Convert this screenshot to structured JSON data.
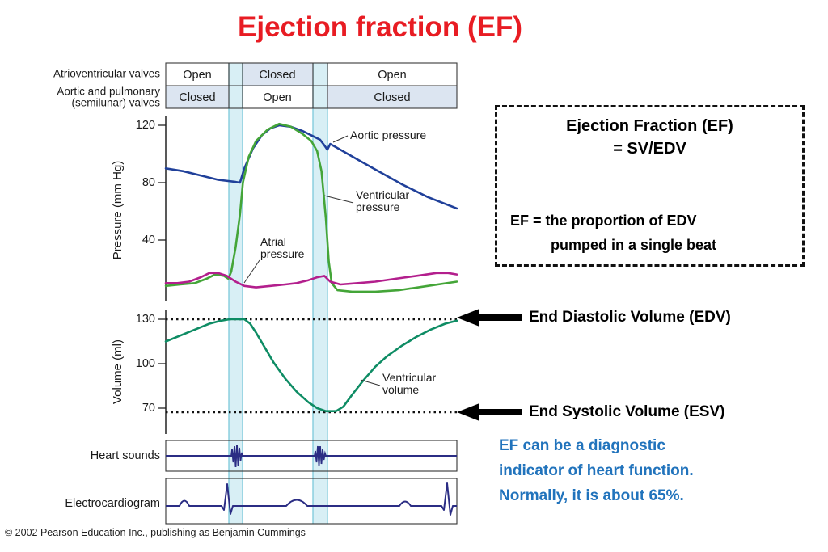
{
  "title": "Ejection fraction (EF)",
  "colors": {
    "title_red": "#e81c23",
    "aortic_blue": "#20409a",
    "ventricular_green": "#44a538",
    "atrial_magenta": "#b31f8d",
    "volume_teal": "#0e8c64",
    "trace_navy": "#2b2d84",
    "cyan_band_fill": "#d8eff5",
    "cyan_band_line": "#7cc9da",
    "closed_cell_shade": "#dce5f1",
    "note_blue": "#2173bc"
  },
  "valve_table": {
    "row1_label": "Atrioventricular valves",
    "row2_label_line1": "Aortic and pulmonary",
    "row2_label_line2": "(semilunar) valves",
    "row1_cells": [
      "Open",
      "Closed",
      "Open"
    ],
    "row2_cells": [
      "Closed",
      "Open",
      "Closed"
    ]
  },
  "pressure_panel": {
    "ylabel": "Pressure (mm Hg)",
    "ticks": [
      "120",
      "80",
      "40"
    ],
    "aortic_label": "Aortic pressure",
    "ventricular_label_line1": "Ventricular",
    "ventricular_label_line2": "pressure",
    "atrial_label_line1": "Atrial",
    "atrial_label_line2": "pressure"
  },
  "volume_panel": {
    "ylabel": "Volume (ml)",
    "ticks": [
      "130",
      "100",
      "70"
    ],
    "curve_label_line1": "Ventricular",
    "curve_label_line2": "volume"
  },
  "heart_sounds_label": "Heart sounds",
  "ecg_label": "Electrocardiogram",
  "copyright": "© 2002 Pearson Education Inc., publishing as Benjamin Cummings",
  "ef_box": {
    "line1": "Ejection Fraction (EF)",
    "line2": "= SV/EDV",
    "line3": "EF = the proportion of EDV",
    "line4": "pumped in a single beat"
  },
  "edv_label": "End Diastolic Volume (EDV)",
  "esv_label": "End Systolic Volume (ESV)",
  "note": {
    "line1": "EF can be a diagnostic",
    "line2": "indicator of heart function.",
    "line3": "Normally, it is about 65%."
  },
  "chart_data": [
    {
      "type": "line",
      "title": "Cardiac cycle pressures",
      "ylabel": "Pressure (mm Hg)",
      "yticks": [
        120,
        80,
        40
      ],
      "ylim": [
        0,
        130
      ],
      "x_unit": "fraction of cardiac cycle (0-1)",
      "legend_position": "inline-annotations",
      "grid": false,
      "series": [
        {
          "name": "Aortic pressure",
          "color": "#20409a",
          "points": [
            [
              0,
              90
            ],
            [
              0.06,
              88
            ],
            [
              0.12,
              85
            ],
            [
              0.18,
              82
            ],
            [
              0.24,
              80.5
            ],
            [
              0.255,
              80
            ],
            [
              0.27,
              90
            ],
            [
              0.3,
              104
            ],
            [
              0.33,
              113
            ],
            [
              0.36,
              118
            ],
            [
              0.39,
              120
            ],
            [
              0.43,
              119
            ],
            [
              0.47,
              116
            ],
            [
              0.5,
              113
            ],
            [
              0.53,
              110
            ],
            [
              0.545,
              106
            ],
            [
              0.555,
              103
            ],
            [
              0.565,
              107
            ],
            [
              0.6,
              103
            ],
            [
              0.66,
              96
            ],
            [
              0.73,
              88
            ],
            [
              0.81,
              79
            ],
            [
              0.9,
              70
            ],
            [
              1,
              62
            ]
          ]
        },
        {
          "name": "Ventricular pressure",
          "color": "#44a538",
          "points": [
            [
              0,
              8
            ],
            [
              0.05,
              9
            ],
            [
              0.1,
              10
            ],
            [
              0.14,
              13
            ],
            [
              0.17,
              16
            ],
            [
              0.2,
              15
            ],
            [
              0.215,
              13
            ],
            [
              0.225,
              18
            ],
            [
              0.24,
              35
            ],
            [
              0.255,
              58
            ],
            [
              0.265,
              80
            ],
            [
              0.285,
              98
            ],
            [
              0.31,
              109
            ],
            [
              0.35,
              117
            ],
            [
              0.39,
              121
            ],
            [
              0.43,
              119
            ],
            [
              0.47,
              114
            ],
            [
              0.5,
              109
            ],
            [
              0.52,
              102
            ],
            [
              0.535,
              88
            ],
            [
              0.55,
              55
            ],
            [
              0.56,
              25
            ],
            [
              0.57,
              10
            ],
            [
              0.59,
              5
            ],
            [
              0.64,
              4
            ],
            [
              0.72,
              4
            ],
            [
              0.8,
              5
            ],
            [
              0.9,
              8
            ],
            [
              1,
              11
            ]
          ]
        },
        {
          "name": "Atrial pressure",
          "color": "#b31f8d",
          "points": [
            [
              0,
              10
            ],
            [
              0.04,
              10
            ],
            [
              0.08,
              11
            ],
            [
              0.12,
              14
            ],
            [
              0.15,
              17
            ],
            [
              0.18,
              17
            ],
            [
              0.21,
              15
            ],
            [
              0.24,
              11
            ],
            [
              0.27,
              8
            ],
            [
              0.31,
              7
            ],
            [
              0.36,
              8
            ],
            [
              0.41,
              9
            ],
            [
              0.45,
              10
            ],
            [
              0.49,
              12
            ],
            [
              0.52,
              14
            ],
            [
              0.545,
              15
            ],
            [
              0.565,
              11
            ],
            [
              0.6,
              9
            ],
            [
              0.66,
              10
            ],
            [
              0.72,
              11
            ],
            [
              0.79,
              13
            ],
            [
              0.86,
              15
            ],
            [
              0.93,
              17
            ],
            [
              0.97,
              17
            ],
            [
              1,
              16
            ]
          ]
        }
      ]
    },
    {
      "type": "line",
      "title": "Ventricular volume",
      "ylabel": "Volume (ml)",
      "yticks": [
        130,
        100,
        70
      ],
      "ylim": [
        60,
        140
      ],
      "x_unit": "fraction of cardiac cycle (0-1)",
      "grid": false,
      "reference_lines": [
        {
          "label": "End Diastolic Volume (EDV)",
          "value": 130
        },
        {
          "label": "End Systolic Volume (ESV)",
          "value": 68
        }
      ],
      "series": [
        {
          "name": "Ventricular volume",
          "color": "#0e8c64",
          "points": [
            [
              0,
              115
            ],
            [
              0.05,
              119
            ],
            [
              0.1,
              123
            ],
            [
              0.15,
              127
            ],
            [
              0.19,
              129
            ],
            [
              0.22,
              130
            ],
            [
              0.27,
              130
            ],
            [
              0.29,
              127
            ],
            [
              0.31,
              121
            ],
            [
              0.34,
              111
            ],
            [
              0.37,
              101
            ],
            [
              0.41,
              90
            ],
            [
              0.45,
              81
            ],
            [
              0.49,
              74
            ],
            [
              0.52,
              70
            ],
            [
              0.55,
              68
            ],
            [
              0.585,
              68
            ],
            [
              0.61,
              71
            ],
            [
              0.64,
              79
            ],
            [
              0.68,
              89
            ],
            [
              0.72,
              98
            ],
            [
              0.76,
              105
            ],
            [
              0.81,
              112
            ],
            [
              0.86,
              118
            ],
            [
              0.91,
              123
            ],
            [
              0.96,
              127
            ],
            [
              1,
              129
            ]
          ]
        }
      ]
    }
  ]
}
